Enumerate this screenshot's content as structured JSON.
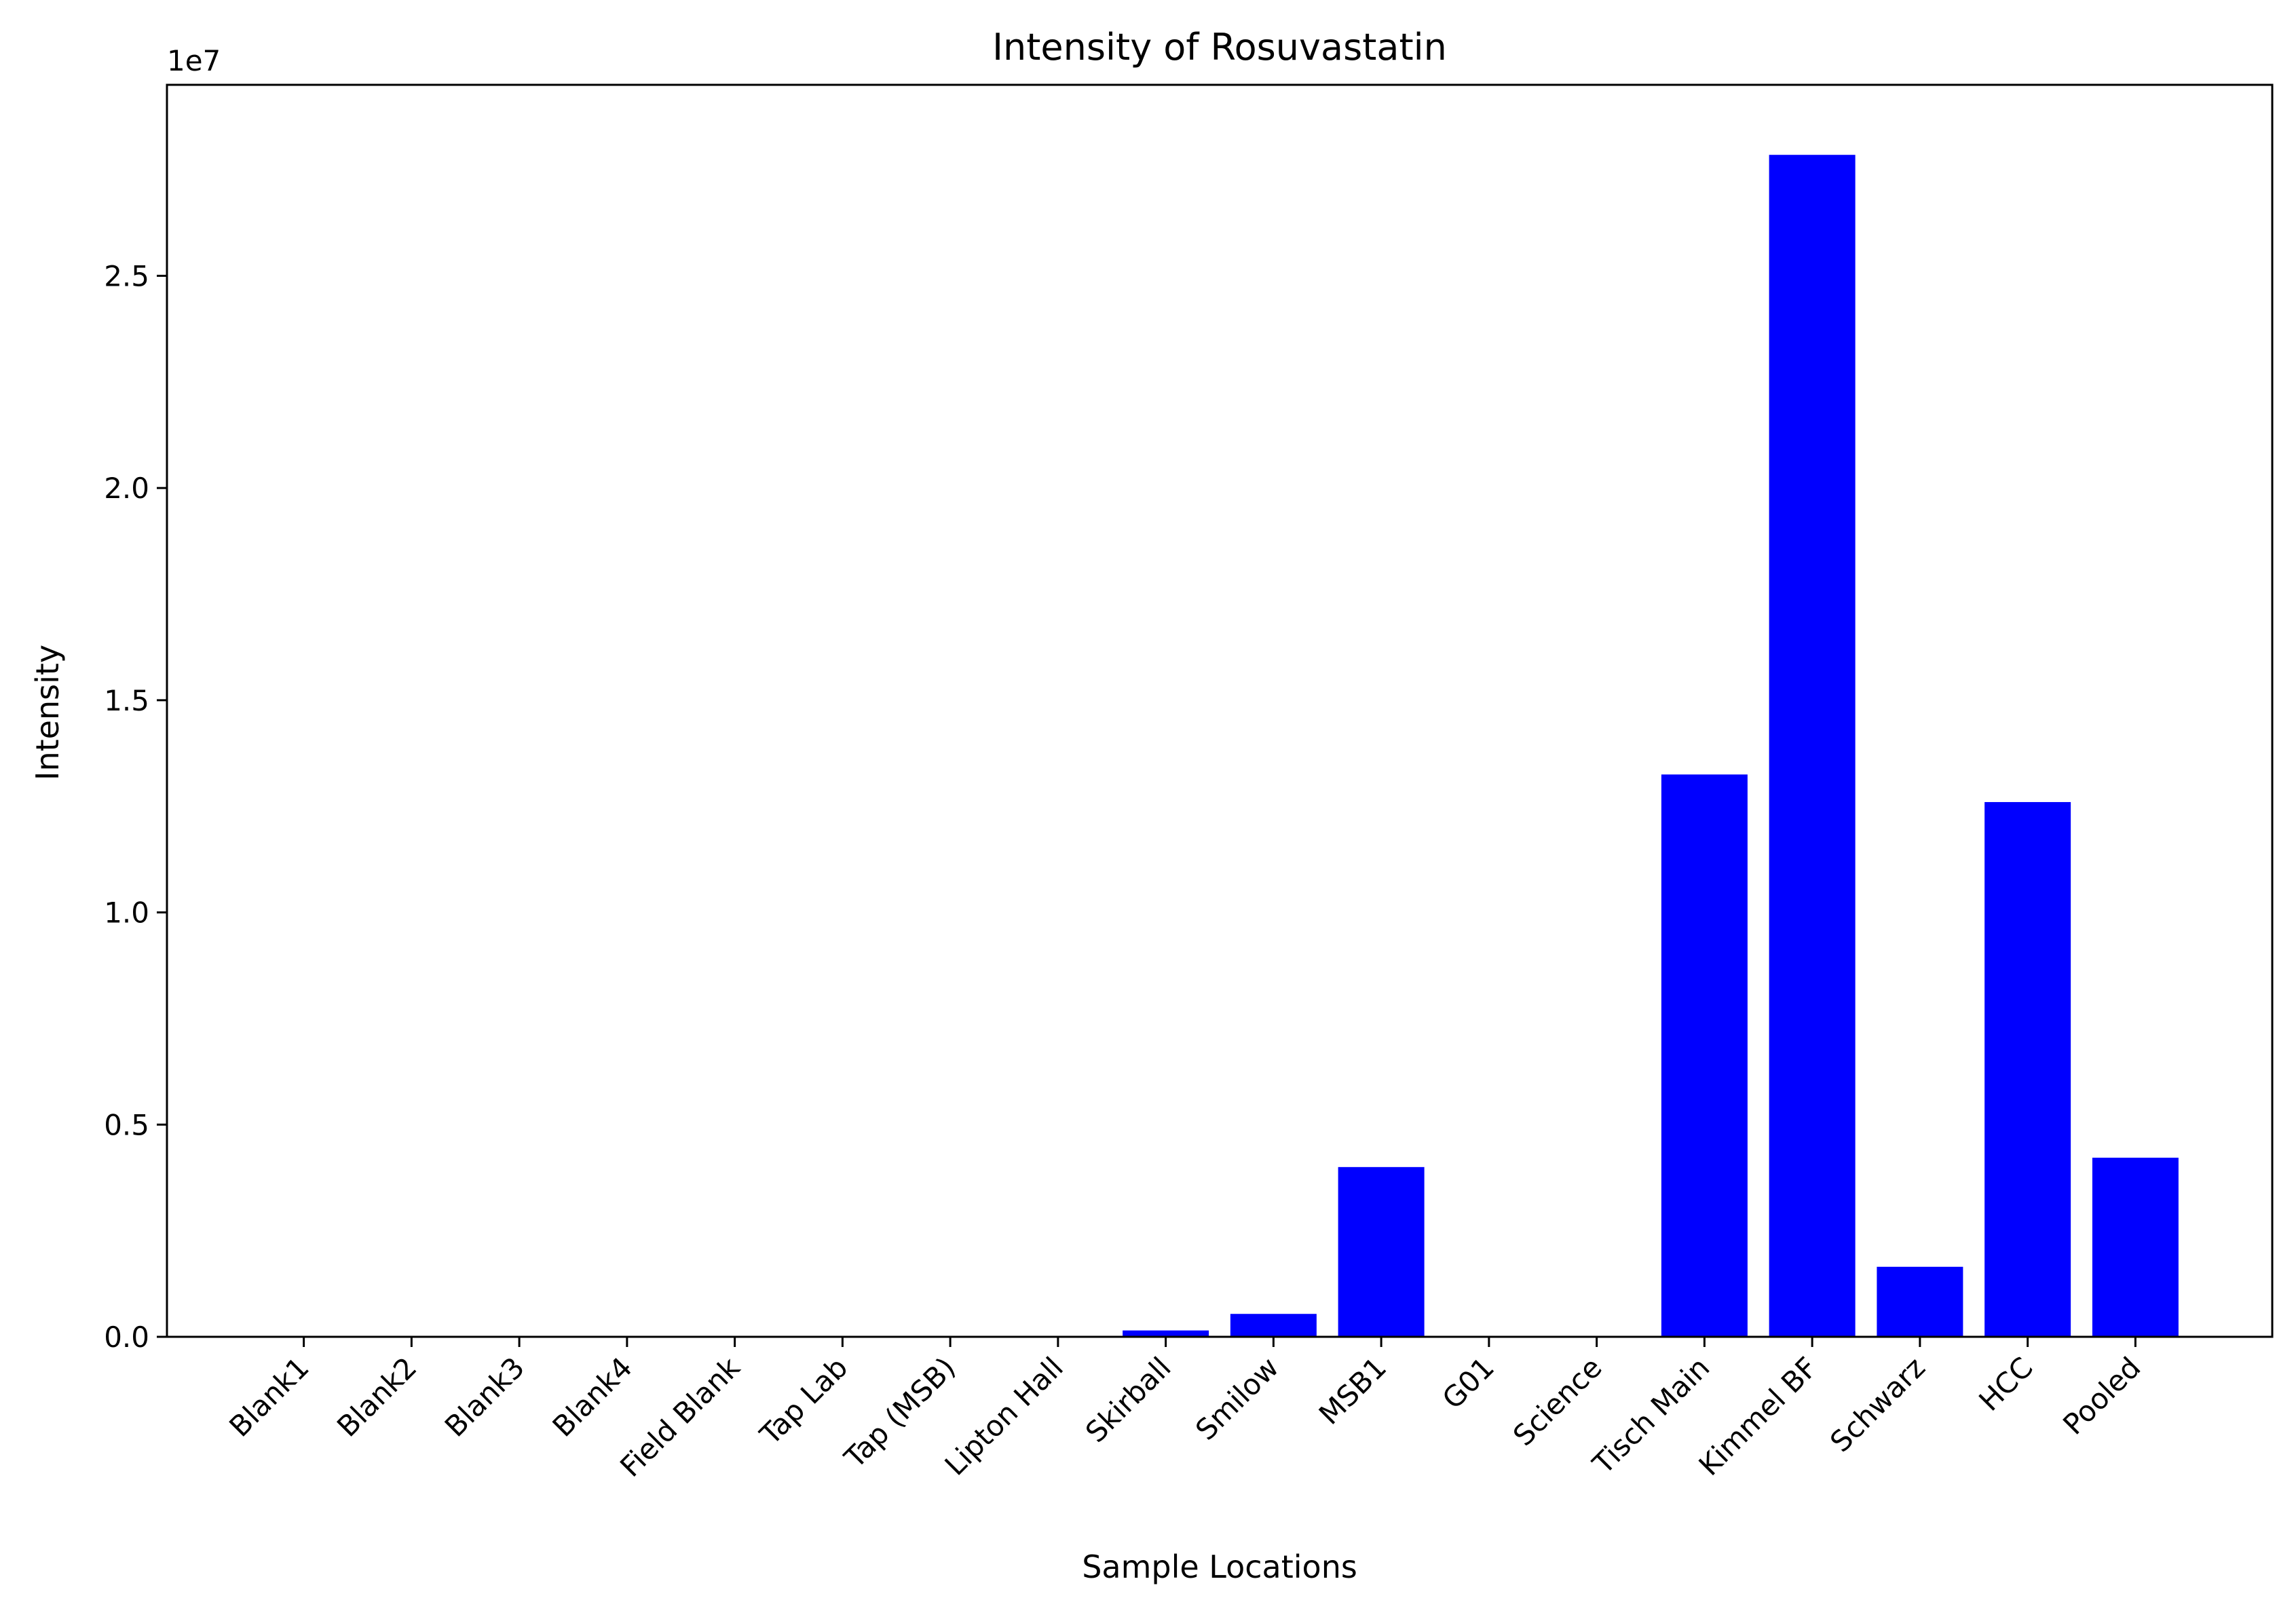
{
  "chart_data": {
    "type": "bar",
    "title": "Intensity of Rosuvastatin",
    "xlabel": "Sample Locations",
    "ylabel": "Intensity",
    "y_offset_label": "1e7",
    "y_scale_factor": 10000000,
    "ylim": [
      0,
      29500000
    ],
    "yticks": [
      0,
      5000000,
      10000000,
      15000000,
      20000000,
      25000000
    ],
    "ytick_labels": [
      "0.0",
      "0.5",
      "1.0",
      "1.5",
      "2.0",
      "2.5"
    ],
    "categories": [
      "Blank1",
      "Blank2",
      "Blank3",
      "Blank4",
      "Field Blank",
      "Tap Lab",
      "Tap (MSB)",
      "Lipton Hall",
      "Skirball",
      "Smilow",
      "MSB1",
      "G01",
      "Science",
      "Tisch Main",
      "Kimmel BF",
      "Schwarz",
      "HCC",
      "Pooled"
    ],
    "values": [
      0,
      0,
      0,
      0,
      0,
      0,
      0,
      0,
      150000,
      540000,
      4000000,
      0,
      0,
      13250000,
      27850000,
      1650000,
      12600000,
      4220000
    ],
    "bar_color": "#0000ff",
    "grid": false
  }
}
